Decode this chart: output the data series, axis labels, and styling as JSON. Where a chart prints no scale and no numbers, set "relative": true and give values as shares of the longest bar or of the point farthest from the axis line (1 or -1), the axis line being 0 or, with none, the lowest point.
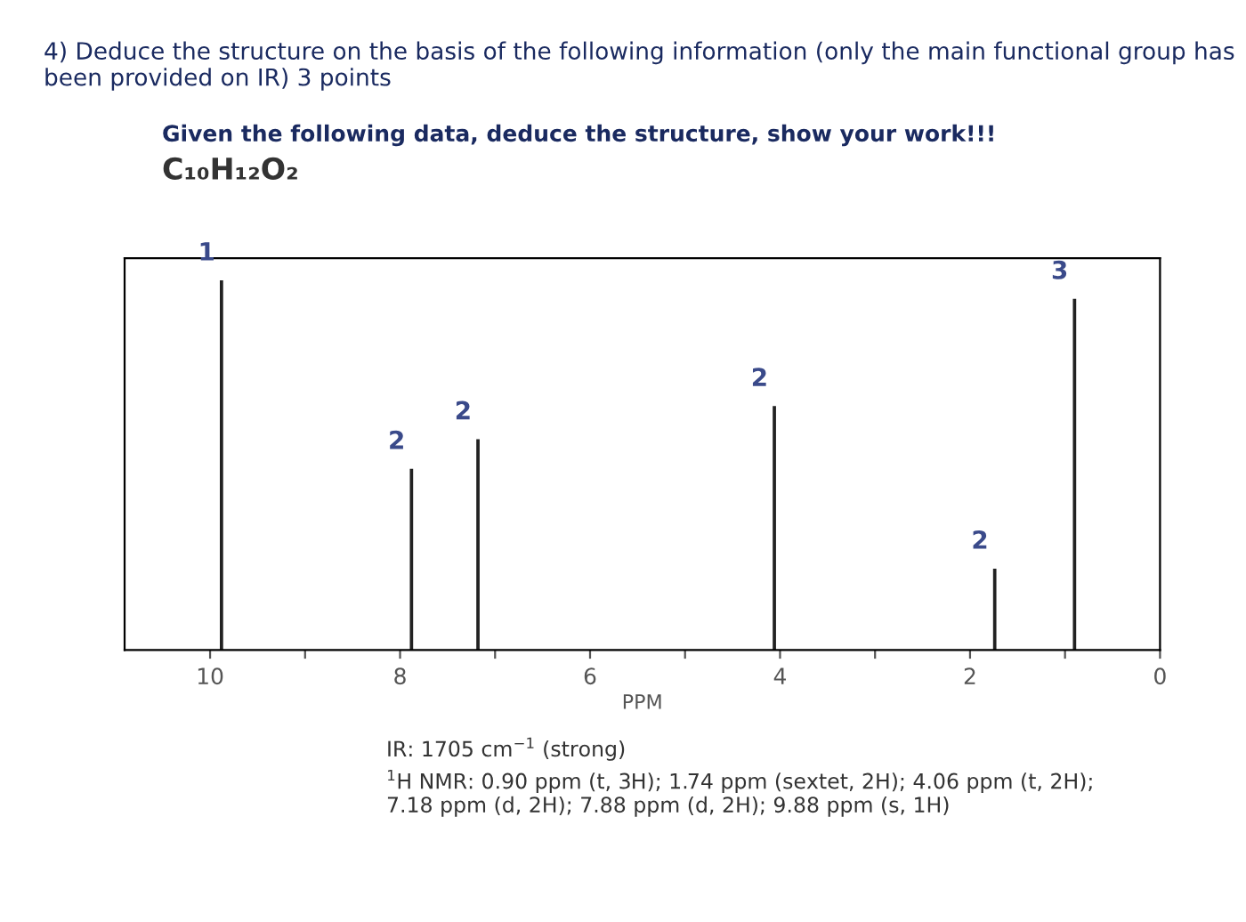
{
  "chart_data": {
    "type": "bar",
    "title": "4) Deduce the structure on the basis of the following information (only the main functional group has been provided on IR) 3 points",
    "subtitle": "Given the following data, deduce the structure, show your work!!!",
    "xlabel": "PPM",
    "x": [
      9.88,
      7.88,
      7.18,
      4.06,
      1.74,
      0.9
    ],
    "values": [
      1,
      0.49,
      0.57,
      0.66,
      0.22,
      0.95
    ],
    "relative": true,
    "color": "#222222",
    "xlim": [
      10.9,
      0
    ],
    "xticks": [
      {
        "value": 10,
        "label": "10"
      },
      {
        "value": 9,
        "label": null
      },
      {
        "value": 8,
        "label": "8"
      },
      {
        "value": 7,
        "label": null
      },
      {
        "value": 6,
        "label": "6"
      },
      {
        "value": 5,
        "label": null
      },
      {
        "value": 4,
        "label": "4"
      },
      {
        "value": 3,
        "label": null
      },
      {
        "value": 2,
        "label": "2"
      },
      {
        "value": 1,
        "label": null
      },
      {
        "value": 0,
        "label": "0"
      }
    ],
    "tick_labels": "x",
    "grid": false,
    "legend": false,
    "annotations": [
      {
        "text": "1",
        "x": 9.88,
        "y": 1
      },
      {
        "text": "2",
        "x": 7.88,
        "y": 0.49
      },
      {
        "text": "2",
        "x": 7.18,
        "y": 0.57
      },
      {
        "text": "2",
        "x": 4.06,
        "y": 0.66
      },
      {
        "text": "2",
        "x": 1.74,
        "y": 0.22
      },
      {
        "text": "3",
        "x": 0.9,
        "y": 0.95
      },
      "C₁₀H₁₂O₂",
      "IR: 1705 cm$^{−1}$ (strong)",
      "$^{1}$H NMR: 0.90 ppm (t, 3H); 1.74 ppm (sextet, 2H); 4.06 ppm (t, 2H);\n7.18 ppm (d, 2H); 7.88 ppm (d, 2H); 9.88 ppm (s, 1H)"
    ]
  }
}
